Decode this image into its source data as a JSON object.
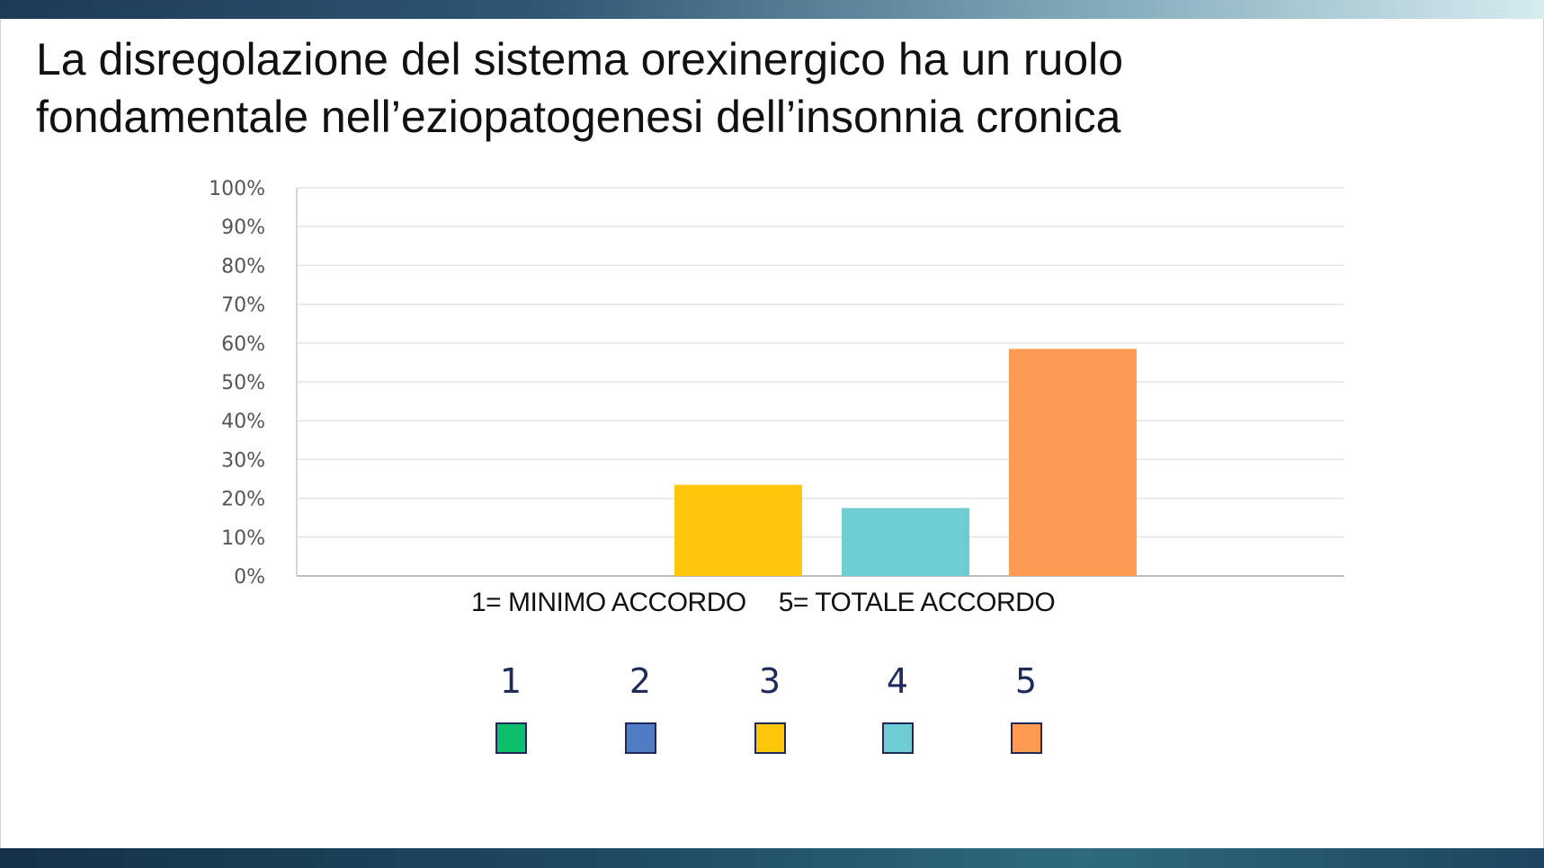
{
  "title_lines": [
    "La disregolazione del sistema orexinergico ha un ruolo",
    "fondamentale nell’eziopatogenesi dell’insonnia cronica"
  ],
  "scale_note": {
    "min": "1= MINIMO ACCORDO",
    "max": "5= TOTALE ACCORDO"
  },
  "legend": [
    {
      "label": "1",
      "color": "#0bbf6b"
    },
    {
      "label": "2",
      "color": "#4f7cc2"
    },
    {
      "label": "3",
      "color": "#ffc709"
    },
    {
      "label": "4",
      "color": "#6dcdd2"
    },
    {
      "label": "5",
      "color": "#ff9a52"
    }
  ],
  "chart_data": {
    "type": "bar",
    "categories": [
      "1",
      "2",
      "3",
      "4",
      "5"
    ],
    "values": [
      0,
      0,
      23.5,
      17.5,
      58.5
    ],
    "colors": [
      "#0bbf6b",
      "#4f7cc2",
      "#ffc709",
      "#6dcdd2",
      "#ff9a52"
    ],
    "ylim": [
      0,
      100
    ],
    "y_ticks": [
      "0%",
      "10%",
      "20%",
      "30%",
      "40%",
      "50%",
      "60%",
      "70%",
      "80%",
      "90%",
      "100%"
    ],
    "grid": true
  }
}
